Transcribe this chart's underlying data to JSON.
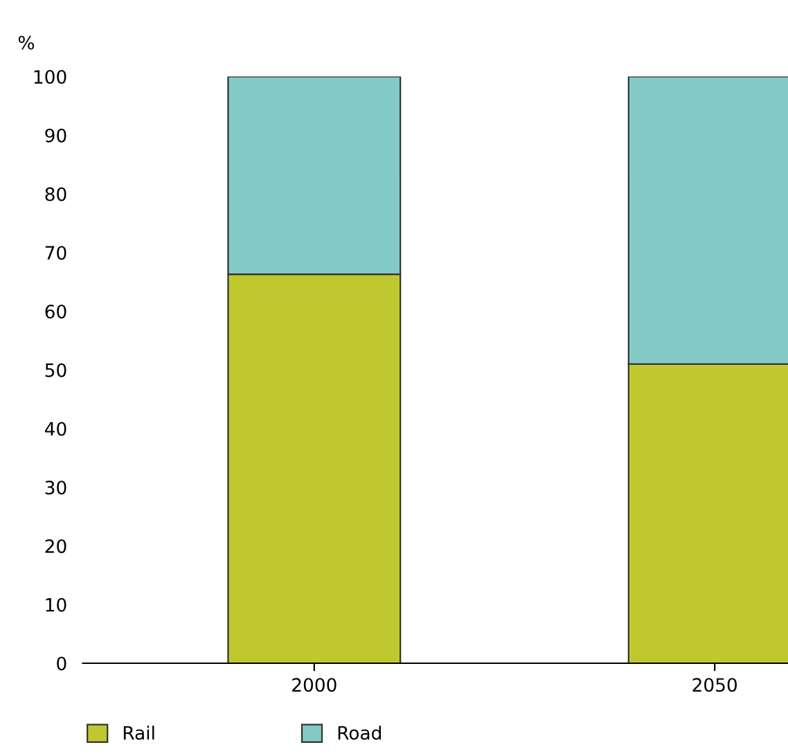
{
  "chart_data": {
    "type": "bar",
    "stacked": true,
    "ylabel": "%",
    "categories": [
      "2000",
      "2050"
    ],
    "series": [
      {
        "name": "Rail",
        "color": "#bfc92f",
        "values": [
          66.3,
          51
        ]
      },
      {
        "name": "Road",
        "color": "#83cac6",
        "values": [
          33.7,
          49
        ]
      }
    ],
    "ylim": [
      0,
      100
    ],
    "yticks": [
      0,
      10,
      20,
      30,
      40,
      50,
      60,
      70,
      80,
      90,
      100
    ],
    "grid": false,
    "legend": "bottom"
  }
}
